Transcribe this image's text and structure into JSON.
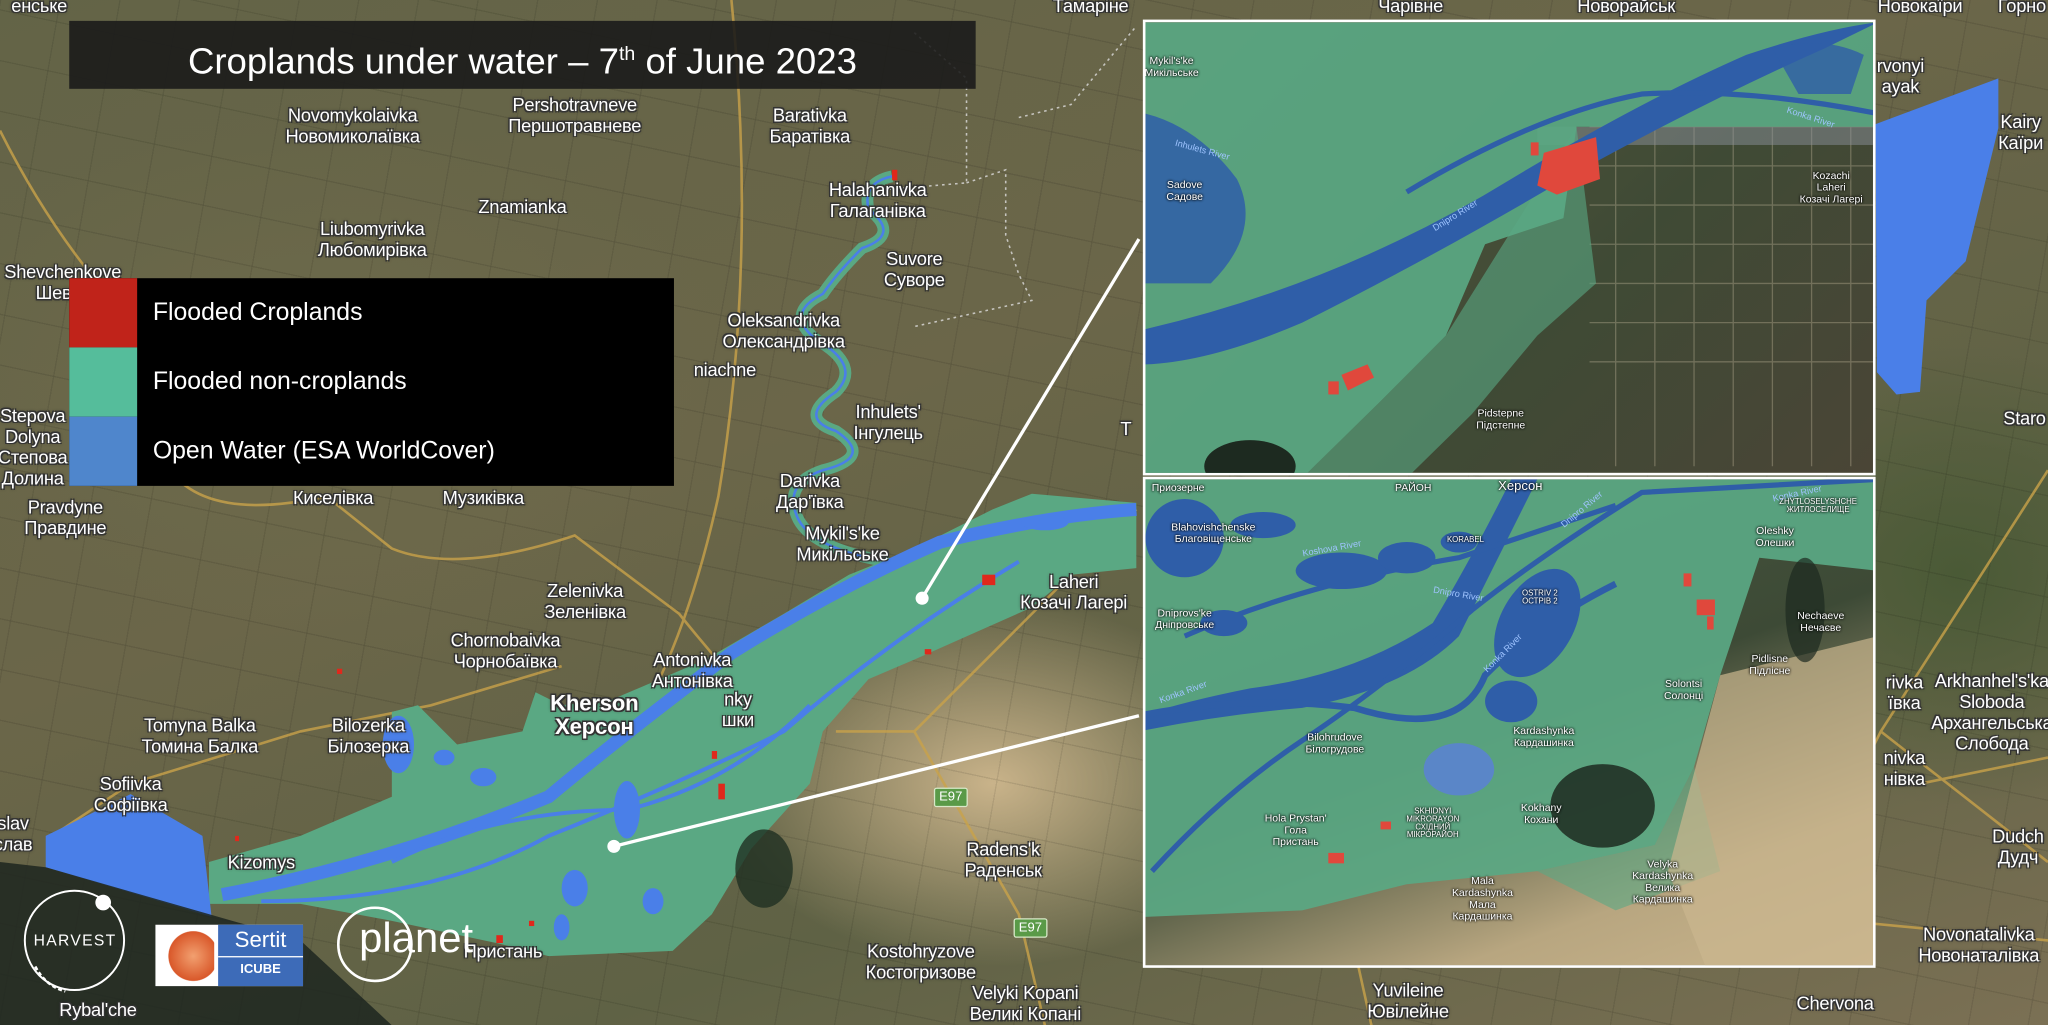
{
  "title": {
    "main": "Croplands under water – 7",
    "sup": "th",
    "rest": " of June 2023"
  },
  "legend": [
    {
      "label": "Flooded Croplands",
      "color": "#c0231a"
    },
    {
      "label": "Flooded non-croplands",
      "color": "#55bd9b"
    },
    {
      "label": "Open Water (ESA WorldCover)",
      "color": "#4f86cc"
    }
  ],
  "colors": {
    "flood_teal": "#5aa883",
    "open_water": "#4a7fe8",
    "cropland_red": "#e0281c"
  },
  "map_labels": [
    [
      "енське"
    ],
    [
      "Тамаріне"
    ],
    [
      "Чарівне"
    ],
    [
      "Новорайськ"
    ],
    [
      "Новокаїри"
    ],
    [
      "Горно"
    ],
    [
      "Novomykolaivka",
      "Новомиколаївка"
    ],
    [
      "Pershotravneve",
      "Першотравневе"
    ],
    [
      "Baratіvka",
      "Баратівка"
    ],
    [
      "Halahanivka",
      "Галаганівка"
    ],
    [
      "Znamianka"
    ],
    [
      "Liubomyrivka",
      "Любомирівка"
    ],
    [
      "Shevchenkove",
      "Шевче"
    ],
    [
      "Suvore",
      "Суворе"
    ],
    [
      "Oleksandrivka",
      "Олександрівка"
    ],
    [
      "niachne"
    ],
    [
      "Stepova",
      "Dolyna",
      "Степова",
      "Долина"
    ],
    [
      "Inhulets'",
      "Інгулець"
    ],
    [
      "Киселівка"
    ],
    [
      "Музиківка"
    ],
    [
      "Pravdyne",
      "Правдине"
    ],
    [
      "Darivka",
      "Дар'ївка"
    ],
    [
      "Mykil's'ke",
      "Микільське"
    ],
    [
      "Zelenivka",
      "Зеленівка"
    ],
    [
      "Chornobaivka",
      "Чорнобаївка"
    ],
    [
      "Antonivka",
      "Антонівка"
    ],
    [
      "Laheri",
      "Козачі Лагері"
    ],
    [
      "Kherson",
      "Херсон"
    ],
    [
      "Tomyna Balka",
      "Томина Балка"
    ],
    [
      "Bilozerka",
      "Білозерка"
    ],
    [
      "Sofiivka",
      "Софіївка"
    ],
    [
      "Kizomys"
    ],
    [
      "slav",
      "слав"
    ],
    [
      "nky",
      "шки"
    ],
    [
      "Radens'k",
      "Раденськ"
    ],
    [
      "Пристань"
    ],
    [
      "Kostohryzove",
      "Костогризове"
    ],
    [
      "Velyki Kopani",
      "Великі Копані"
    ],
    [
      "Rybal'che"
    ],
    [
      "Yuvileine",
      "Ювілейне"
    ],
    [
      "Chervona"
    ],
    [
      "rvonyi",
      "ayak"
    ],
    [
      "Kairy",
      "Каїри"
    ],
    [
      "Staro"
    ],
    [
      "rivka",
      "ївка"
    ],
    [
      "Arkhanhel's'ka",
      "Sloboda",
      "Архангельська",
      "Слобода"
    ],
    [
      "nivka",
      "нівка"
    ],
    [
      "Dudch",
      "Дудч"
    ],
    [
      "Novonatalivka",
      "Новонаталівка"
    ],
    [
      "T"
    ]
  ],
  "road_signs": [
    "E97",
    "E97"
  ],
  "inset_top": {
    "labels": [
      [
        "Mykil's'ke",
        "Микільське"
      ],
      [
        "Sadove",
        "Садове"
      ],
      [
        "Kozachi",
        "Laheri",
        "Козачі Лагері"
      ],
      [
        "Pidstepne",
        "Підстепне"
      ]
    ],
    "rivers": [
      "Inhulets River",
      "Dnipro River",
      "Konka River"
    ]
  },
  "inset_bottom": {
    "labels": [
      [
        "Приозерне"
      ],
      [
        "РАЙОН"
      ],
      [
        "Херсон"
      ],
      [
        "Blahovishchenske",
        "Благовіщенське"
      ],
      [
        "Dniprovs'ke",
        "Дніпровське"
      ],
      [
        "Bilohrudove",
        "Білогрудове"
      ],
      [
        "Hola Prystan'",
        "Гола",
        "Пристань"
      ],
      [
        "SKHIDNYI",
        "MIKRORAYON",
        "СХІДНИЙ",
        "МІКРОРАЙОН"
      ],
      [
        "Kardashynka",
        "Кардашинка"
      ],
      [
        "Kokhany",
        "Кохани"
      ],
      [
        "Solontsi",
        "Солонці"
      ],
      [
        "Pidlisne",
        "Підлісне"
      ],
      [
        "Nechaeve",
        "Нечаєве"
      ],
      [
        "Oleshky",
        "Олешки"
      ],
      [
        "ZHYTLOSELYSHCHE",
        "ЖИТЛОСЕЛИЩЕ"
      ],
      [
        "Mala",
        "Kardashynka",
        "Мала",
        "Кардашинка"
      ],
      [
        "Velyka",
        "Kardashynka",
        "Велика",
        "Кардашинка"
      ],
      [
        "OSTRIV 2",
        "ОСТРІВ 2"
      ],
      [
        "KORABEL"
      ]
    ],
    "rivers": [
      "Koshova River",
      "Dnipro River",
      "Dnipro River",
      "Konka River",
      "Dnipro River",
      "Konka River",
      "Konka River"
    ]
  },
  "logos": {
    "harvest": "HARVEST",
    "sertit": "Sertit",
    "icube": "ICUBE",
    "planet": "planet"
  }
}
